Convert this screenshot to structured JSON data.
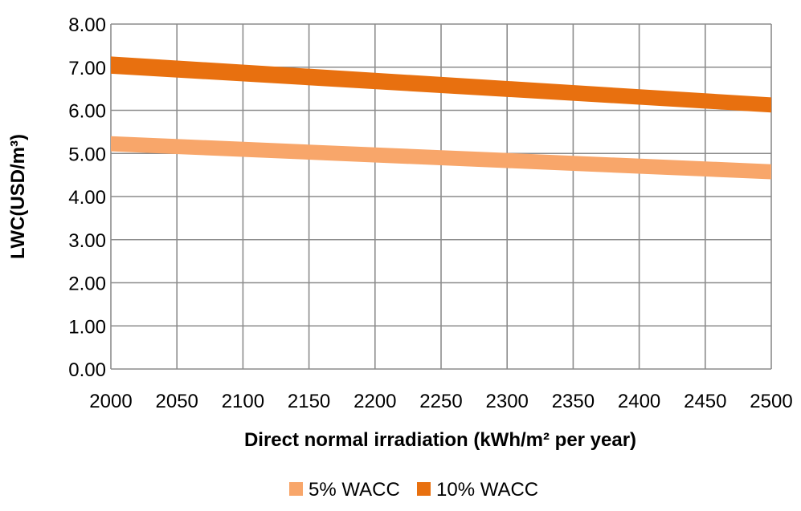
{
  "chart_data": {
    "type": "area",
    "xlabel": "Direct normal irradiation (kWh/m² per year)",
    "ylabel": "LWC(USD/m³)",
    "xlim": [
      2000,
      2500
    ],
    "ylim": [
      0,
      8
    ],
    "x_ticks": [
      "2000",
      "2050",
      "2100",
      "2150",
      "2200",
      "2250",
      "2300",
      "2350",
      "2400",
      "2450",
      "2500"
    ],
    "y_ticks": [
      "0.00",
      "1.00",
      "2.00",
      "3.00",
      "4.00",
      "5.00",
      "6.00",
      "7.00",
      "8.00"
    ],
    "grid": true,
    "legend_position": "bottom",
    "series": [
      {
        "name": "5% WACC",
        "color": "#F8A66A",
        "x": [
          2000,
          2500
        ],
        "lower": [
          5.05,
          4.4
        ],
        "upper": [
          5.4,
          4.75
        ]
      },
      {
        "name": "10% WACC",
        "color": "#E8700F",
        "x": [
          2000,
          2500
        ],
        "lower": [
          6.85,
          5.95
        ],
        "upper": [
          7.25,
          6.3
        ]
      }
    ]
  }
}
